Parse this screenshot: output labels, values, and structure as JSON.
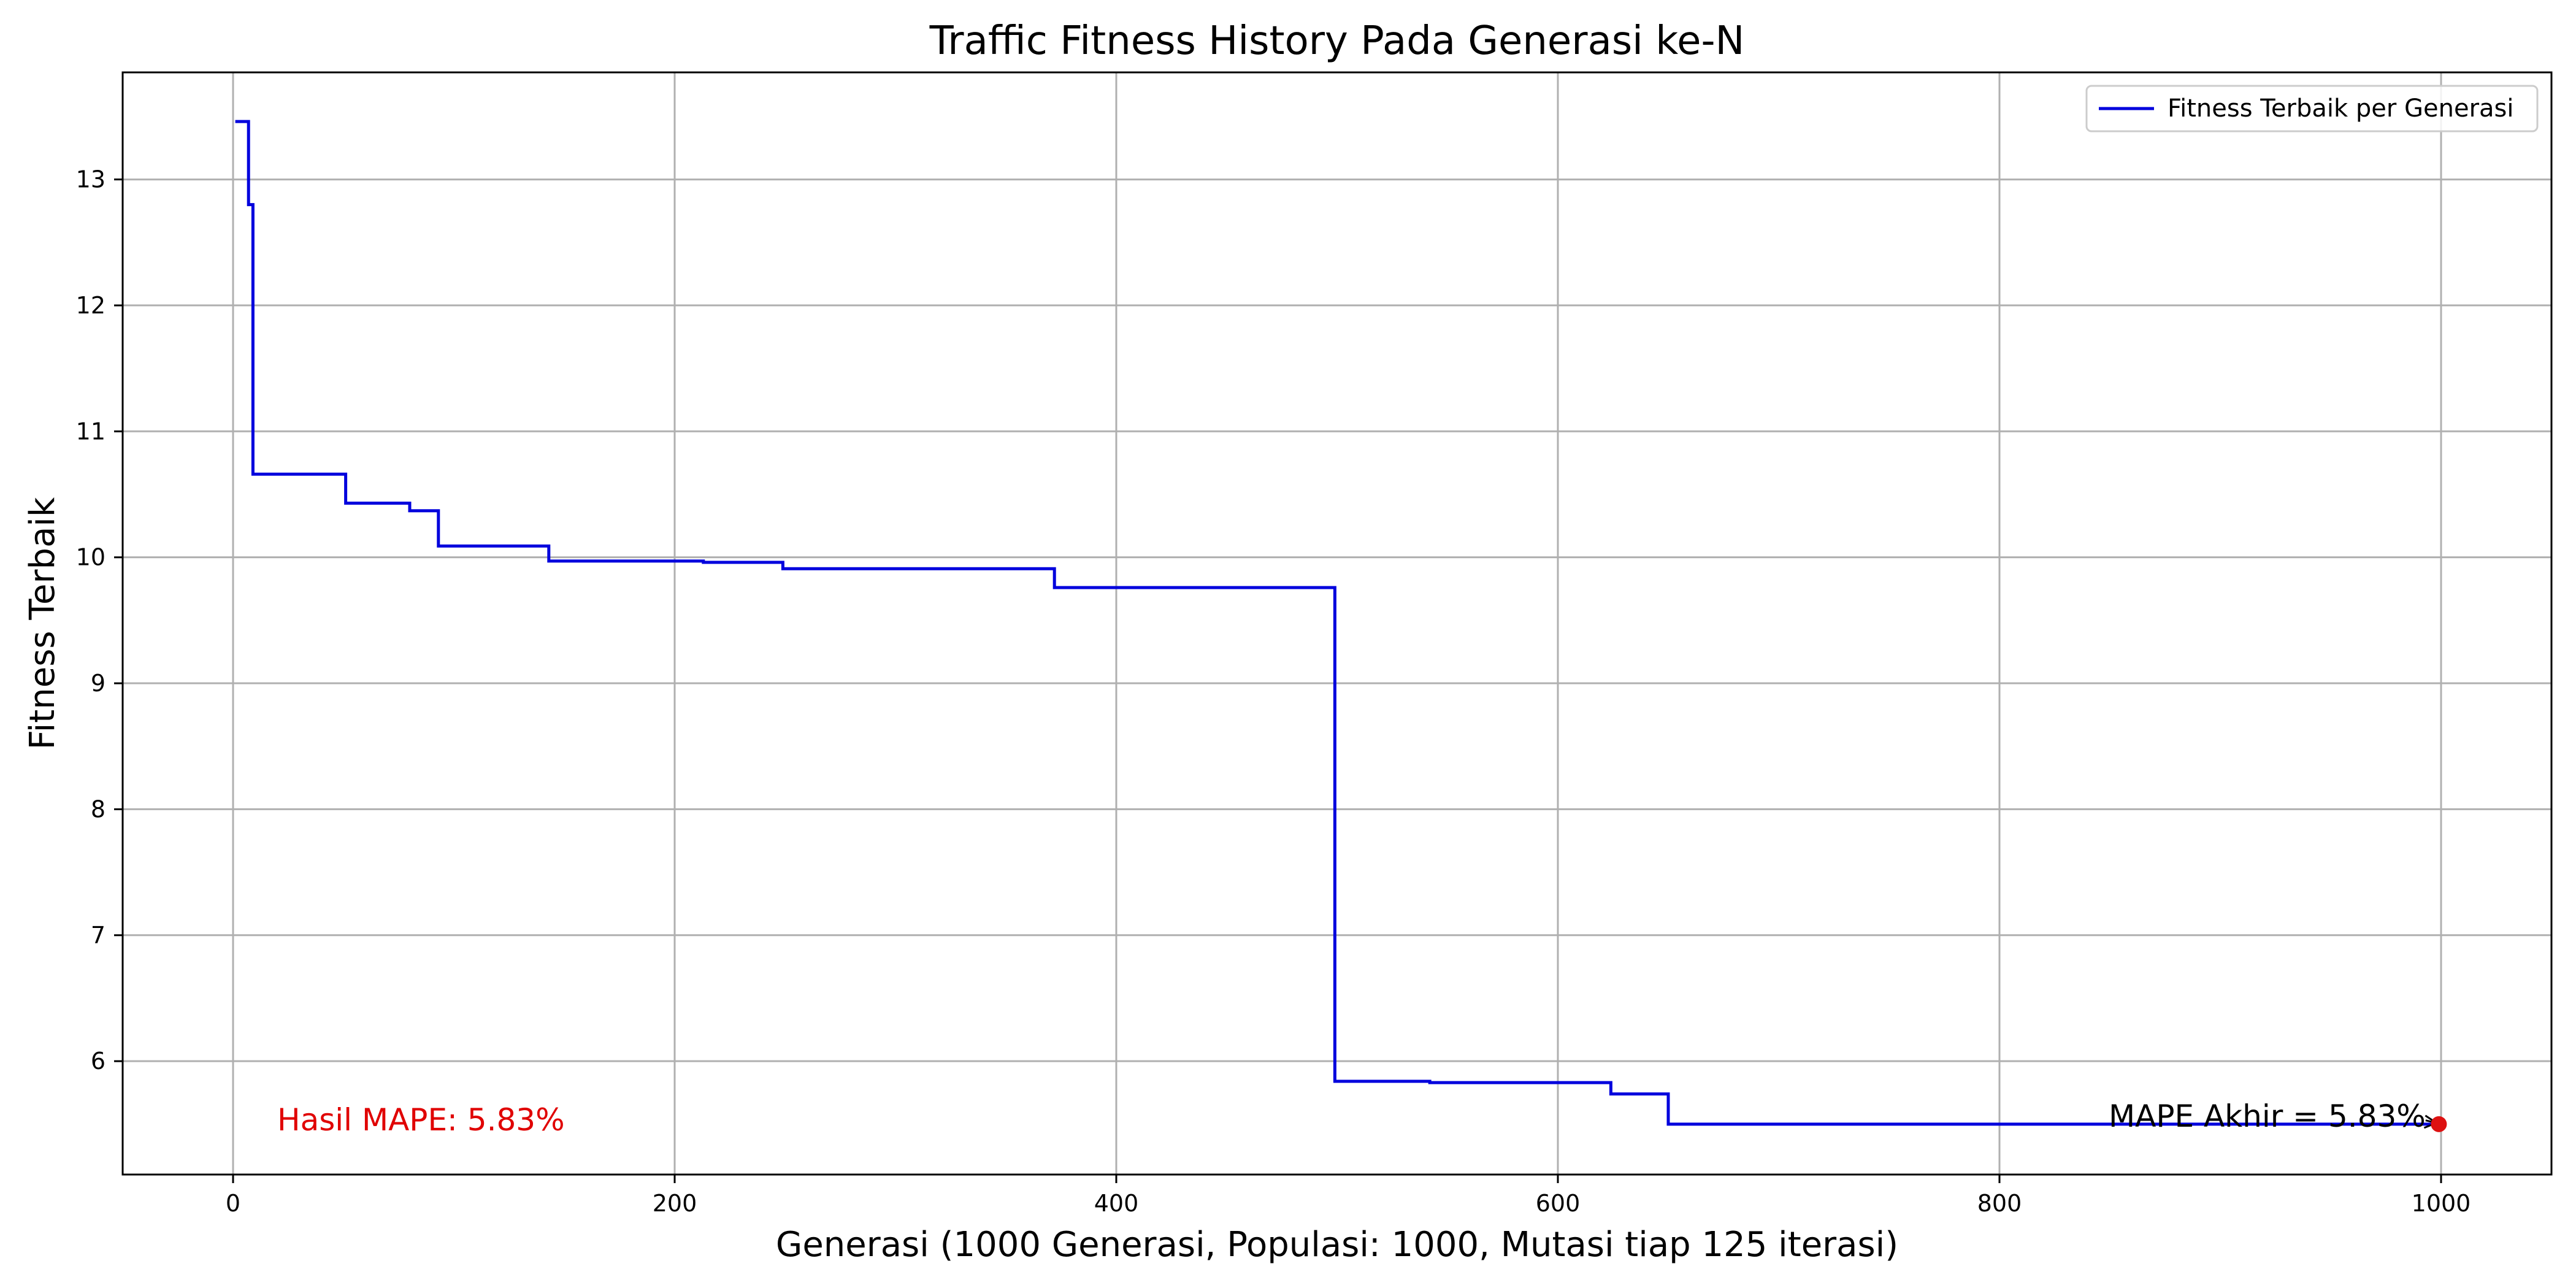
{
  "chart_data": {
    "type": "line",
    "title": "Traffic Fitness History Pada Generasi ke-N",
    "xlabel": "Generasi (1000 Generasi, Populasi: 1000, Mutasi tiap 125 iterasi)",
    "ylabel": "Fitness Terbaik",
    "xlim": [
      -50,
      1050
    ],
    "ylim": [
      5.1,
      13.85
    ],
    "xticks": [
      0,
      200,
      400,
      600,
      800,
      1000
    ],
    "yticks": [
      6,
      7,
      8,
      9,
      10,
      11,
      12,
      13
    ],
    "grid": true,
    "legend_position": "top-right",
    "series": [
      {
        "name": "Fitness Terbaik per Generasi",
        "color": "#0000dd",
        "x": [
          1,
          7,
          7,
          8,
          8,
          9,
          9,
          51,
          51,
          80,
          80,
          93,
          93,
          143,
          143,
          213,
          213,
          249,
          249,
          372,
          372,
          499,
          499,
          542,
          542,
          624,
          624,
          650,
          650,
          999
        ],
        "y": [
          13.46,
          13.46,
          12.8,
          12.8,
          12.8,
          12.8,
          10.66,
          10.66,
          10.43,
          10.43,
          10.37,
          10.37,
          10.09,
          10.09,
          9.97,
          9.97,
          9.96,
          9.96,
          9.91,
          9.91,
          9.76,
          9.76,
          5.84,
          5.84,
          5.83,
          5.83,
          5.74,
          5.74,
          5.5,
          5.5
        ]
      }
    ],
    "marker": {
      "x": 999,
      "y": 5.5,
      "color": "#dd1111"
    },
    "annotations": {
      "result_text": "Hasil MAPE: 5.83%",
      "result_color": "#e00000",
      "final_text": "MAPE Akhir = 5.83%"
    }
  }
}
